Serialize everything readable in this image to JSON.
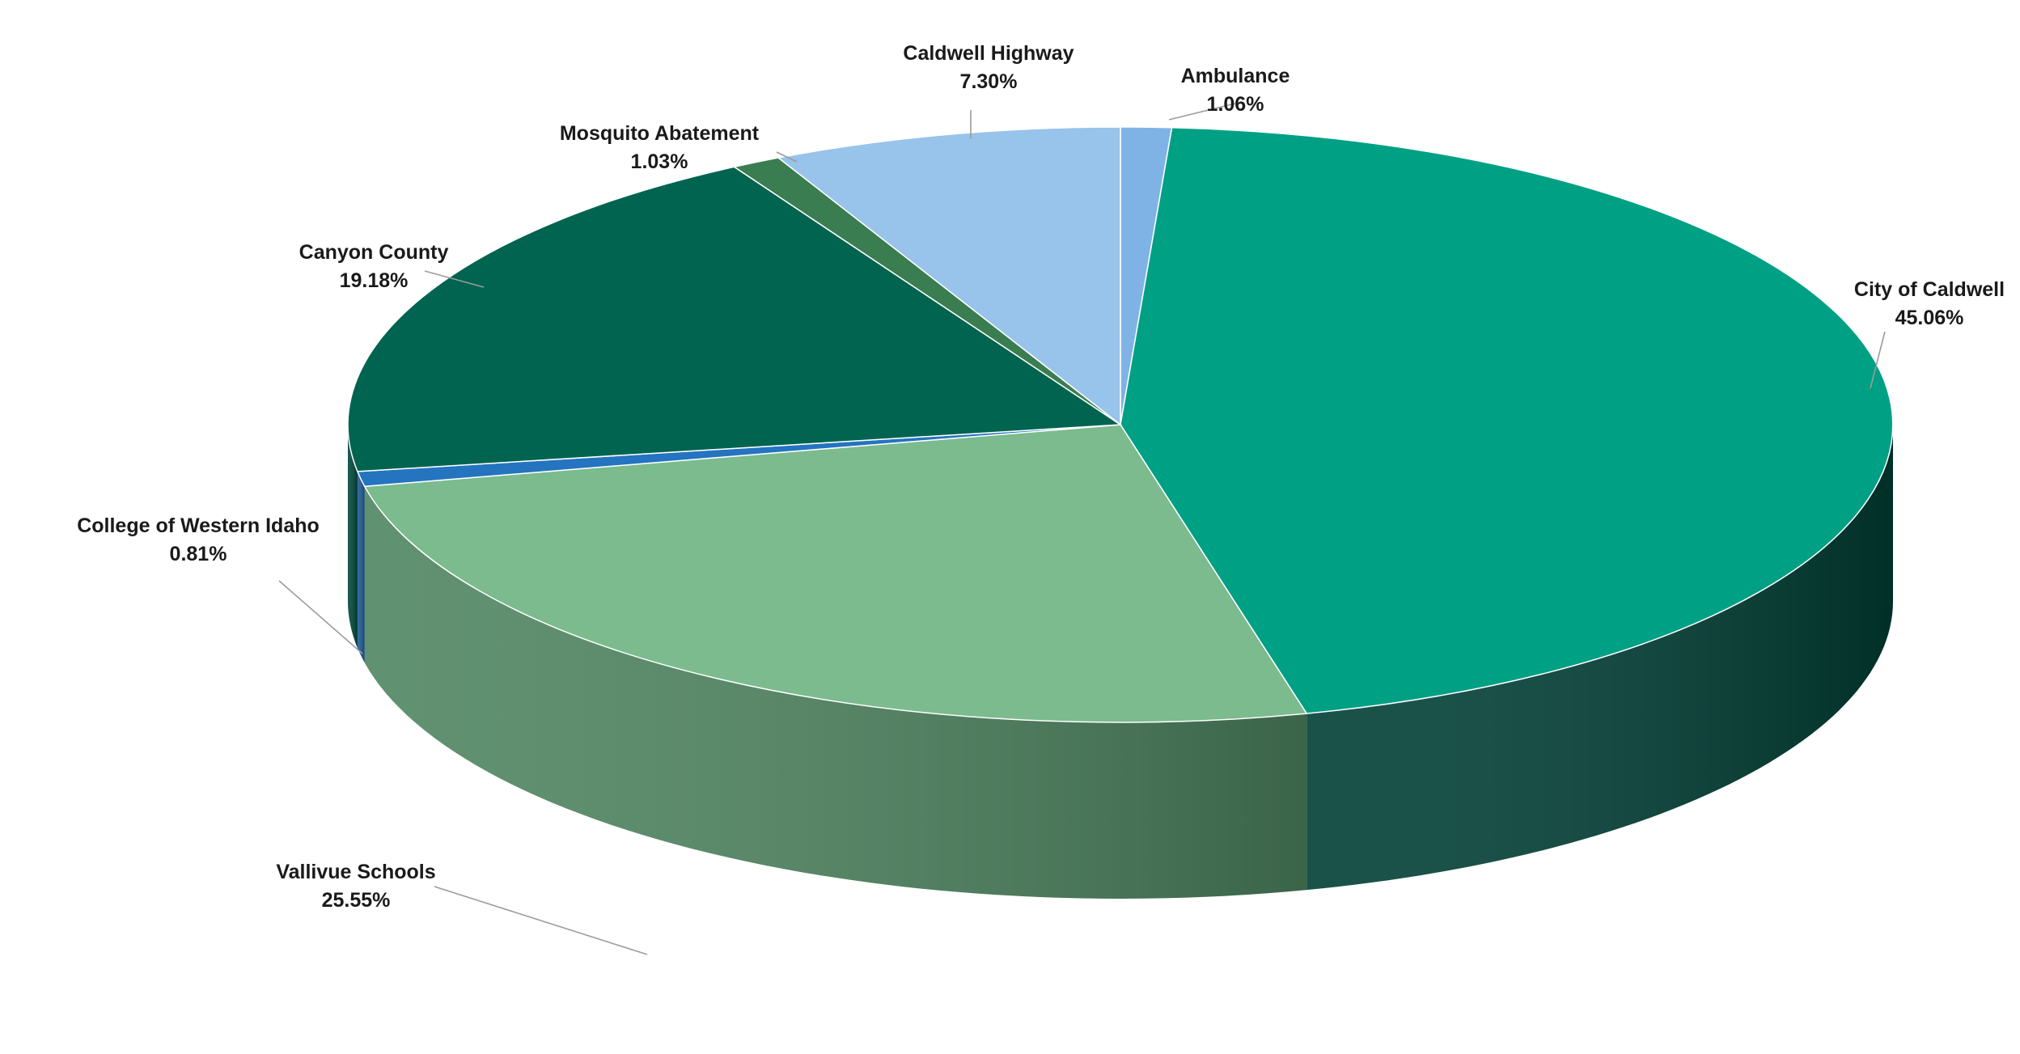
{
  "chart_data": {
    "type": "pie",
    "style": "3d",
    "start_angle_deg": 0,
    "direction": "clockwise",
    "slices": [
      {
        "label": "Ambulance",
        "value_label": "1.06%",
        "value": 1.06,
        "color": "#7fb3e6",
        "side_color": "#5e8cb8"
      },
      {
        "label": "City of Caldwell",
        "value_label": "45.06%",
        "value": 45.06,
        "color": "#00a085",
        "side_color": "#003f35"
      },
      {
        "label": "Vallivue Schools",
        "value_label": "25.55%",
        "value": 25.55,
        "color": "#7bbb8e",
        "side_color": "#4e8560"
      },
      {
        "label": "College of Western Idaho",
        "value_label": "0.81%",
        "value": 0.81,
        "color": "#2474c0",
        "side_color": "#1d5a95"
      },
      {
        "label": "Canyon County",
        "value_label": "19.18%",
        "value": 19.18,
        "color": "#006450",
        "side_color": "#00463a"
      },
      {
        "label": "Mosquito Abatement",
        "value_label": "1.03%",
        "value": 1.03,
        "color": "#3a7d50",
        "side_color": "#2a5c3a"
      },
      {
        "label": "Caldwell Highway",
        "value_label": "7.30%",
        "value": 7.3,
        "color": "#98c3ea",
        "side_color": "#6f97bd"
      }
    ],
    "title": "",
    "legend": "none"
  }
}
